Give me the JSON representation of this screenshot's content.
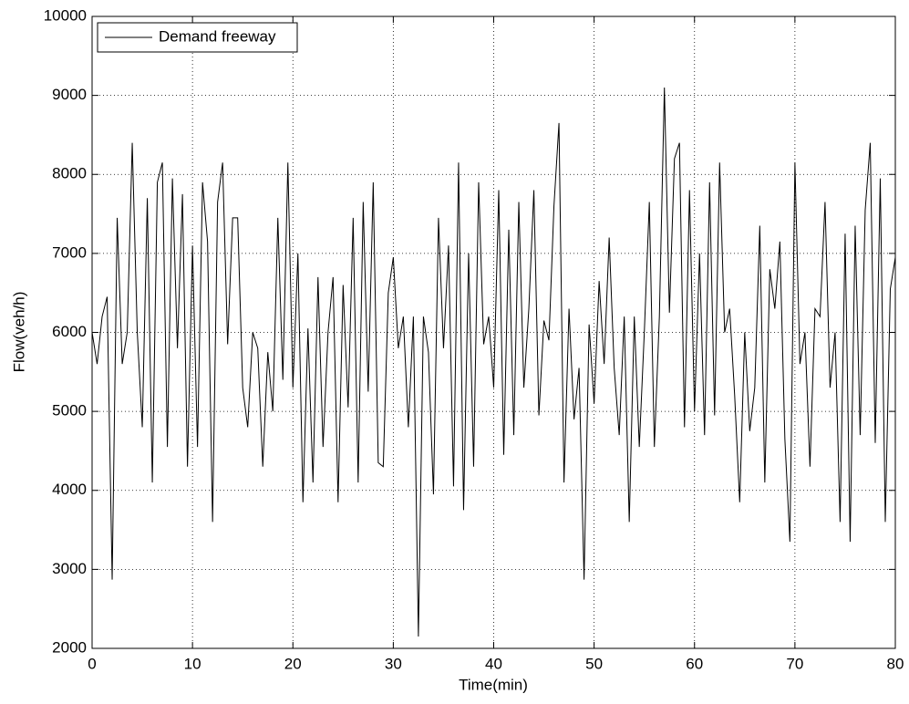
{
  "chart_data": {
    "type": "line",
    "xlabel": "Time(min)",
    "ylabel": "Flow(veh/h)",
    "x": [
      0,
      0.5,
      1,
      1.5,
      2,
      2.5,
      3,
      3.5,
      4,
      4.5,
      5,
      5.5,
      6,
      6.5,
      7,
      7.5,
      8,
      8.5,
      9,
      9.5,
      10,
      10.5,
      11,
      11.5,
      12,
      12.5,
      13,
      13.5,
      14,
      14.5,
      15,
      15.5,
      16,
      16.5,
      17,
      17.5,
      18,
      18.5,
      19,
      19.5,
      20,
      20.5,
      21,
      21.5,
      22,
      22.5,
      23,
      23.5,
      24,
      24.5,
      25,
      25.5,
      26,
      26.5,
      27,
      27.5,
      28,
      28.5,
      29,
      29.5,
      30,
      30.5,
      31,
      31.5,
      32,
      32.5,
      33,
      33.5,
      34,
      34.5,
      35,
      35.5,
      36,
      36.5,
      37,
      37.5,
      38,
      38.5,
      39,
      39.5,
      40,
      40.5,
      41,
      41.5,
      42,
      42.5,
      43,
      43.5,
      44,
      44.5,
      45,
      45.5,
      46,
      46.5,
      47,
      47.5,
      48,
      48.5,
      49,
      49.5,
      50,
      50.5,
      51,
      51.5,
      52,
      52.5,
      53,
      53.5,
      54,
      54.5,
      55,
      55.5,
      56,
      56.5,
      57,
      57.5,
      58,
      58.5,
      59,
      59.5,
      60,
      60.5,
      61,
      61.5,
      62,
      62.5,
      63,
      63.5,
      64,
      64.5,
      65,
      65.5,
      66,
      66.5,
      67,
      67.5,
      68,
      68.5,
      69,
      69.5,
      70,
      70.5,
      71,
      71.5,
      72,
      72.5,
      73,
      73.5,
      74,
      74.5,
      75,
      75.5,
      76,
      76.5,
      77,
      77.5,
      78,
      78.5,
      79,
      79.5,
      80
    ],
    "series": [
      {
        "name": "Demand freeway",
        "color": "#000000",
        "values": [
          6000,
          5600,
          6200,
          6450,
          2870,
          7450,
          5600,
          6000,
          8400,
          6000,
          4800,
          7700,
          4100,
          7900,
          8150,
          4550,
          7950,
          5800,
          7750,
          4300,
          7100,
          4550,
          7900,
          7150,
          3600,
          7650,
          8150,
          5850,
          7450,
          7450,
          5300,
          4800,
          6000,
          5800,
          4300,
          5750,
          5000,
          7450,
          5400,
          8150,
          5300,
          7000,
          3850,
          6050,
          4100,
          6700,
          4550,
          6000,
          6700,
          3850,
          6600,
          5050,
          7450,
          4100,
          7650,
          5250,
          7900,
          4350,
          4300,
          6500,
          6950,
          5800,
          6200,
          4800,
          6200,
          2150,
          6200,
          5750,
          3950,
          7450,
          5800,
          7100,
          4050,
          8150,
          3750,
          7000,
          4300,
          7900,
          5850,
          6200,
          5300,
          7800,
          4450,
          7300,
          4700,
          7650,
          5300,
          6300,
          7800,
          4950,
          6150,
          5900,
          7600,
          8650,
          4100,
          6300,
          4900,
          5550,
          2870,
          6100,
          5100,
          6650,
          5600,
          7200,
          5550,
          4700,
          6200,
          3600,
          6200,
          4550,
          6000,
          7650,
          4550,
          6200,
          9100,
          6250,
          8200,
          8400,
          4800,
          7800,
          5000,
          7000,
          4700,
          7900,
          4950,
          8150,
          6000,
          6300,
          5200,
          3850,
          6000,
          4750,
          5300,
          7350,
          4100,
          6800,
          6300,
          7150,
          4650,
          3350,
          8150,
          5600,
          6000,
          4300,
          6300,
          6200,
          7650,
          5300,
          6000,
          3600,
          7250,
          3350,
          7350,
          4700,
          7550,
          8400,
          4600,
          7950,
          3600,
          6550,
          6950
        ]
      }
    ],
    "xlim": [
      0,
      80
    ],
    "xticks": [
      0,
      10,
      20,
      30,
      40,
      50,
      60,
      70,
      80
    ],
    "ylim": [
      2000,
      10000
    ],
    "yticks": [
      2000,
      3000,
      4000,
      5000,
      6000,
      7000,
      8000,
      9000,
      10000
    ],
    "grid": true,
    "legend": "upper left"
  }
}
